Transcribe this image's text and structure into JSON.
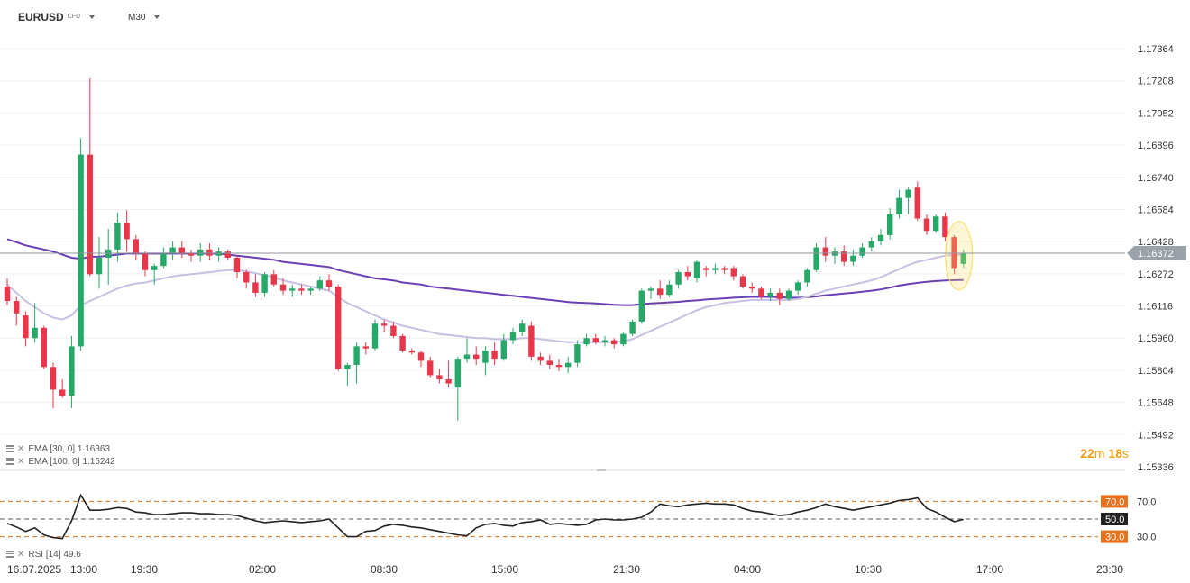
{
  "header": {
    "symbol": "EURUSD",
    "instrument_type": "CFD",
    "timeframe": "M30",
    "symbol_dropdown_icon": "chevron-down-icon",
    "timeframe_dropdown_icon": "chevron-down-icon"
  },
  "indicators": {
    "ema30": {
      "label": "EMA [30, 0]",
      "value": "1.16363",
      "color": "#c9bfe2"
    },
    "ema100": {
      "label": "EMA [100, 0]",
      "value": "1.16242",
      "color": "#6b3fb5"
    },
    "rsi": {
      "label": "RSI [14]",
      "value": "49.6",
      "color": "#222222"
    }
  },
  "countdown": {
    "minutes": "22",
    "minutes_unit": "m",
    "seconds": "18",
    "seconds_unit": "s"
  },
  "colors": {
    "bull": "#26a869",
    "bear": "#e8364a",
    "current_price_tag": "#9aa1a8",
    "rsi_level_tag": "#e8701a",
    "rsi_mid_tag": "#222222",
    "highlight": "#f5e06b"
  },
  "chart_data": [
    {
      "type": "candlestick",
      "title": "EURUSD M30",
      "y_axis_labels": [
        "1.17364",
        "1.17208",
        "1.17052",
        "1.16896",
        "1.16740",
        "1.16584",
        "1.16428",
        "1.16272",
        "1.16116",
        "1.15960",
        "1.15804",
        "1.15648",
        "1.15492",
        "1.15336"
      ],
      "ylim": [
        1.15336,
        1.1752
      ],
      "current_price": "1.16372",
      "x_axis_labels": [
        "16.07.2025",
        "13:00",
        "19:30",
        "02:00",
        "08:30",
        "15:00",
        "21:30",
        "04:00",
        "10:30",
        "17:00",
        "23:30"
      ],
      "candles": [
        {
          "o": 1.1621,
          "h": 1.1625,
          "l": 1.1612,
          "c": 1.1614
        },
        {
          "o": 1.1614,
          "h": 1.1616,
          "l": 1.1602,
          "c": 1.1608
        },
        {
          "o": 1.1607,
          "h": 1.1609,
          "l": 1.1592,
          "c": 1.1596
        },
        {
          "o": 1.1596,
          "h": 1.1613,
          "l": 1.1594,
          "c": 1.1601
        },
        {
          "o": 1.1601,
          "h": 1.1602,
          "l": 1.1581,
          "c": 1.1582
        },
        {
          "o": 1.1582,
          "h": 1.1584,
          "l": 1.1562,
          "c": 1.1571
        },
        {
          "o": 1.1571,
          "h": 1.1576,
          "l": 1.1567,
          "c": 1.1568
        },
        {
          "o": 1.1568,
          "h": 1.1597,
          "l": 1.1562,
          "c": 1.1592
        },
        {
          "o": 1.1592,
          "h": 1.1693,
          "l": 1.159,
          "c": 1.1685
        },
        {
          "o": 1.1685,
          "h": 1.1722,
          "l": 1.1626,
          "c": 1.1627
        },
        {
          "o": 1.1627,
          "h": 1.1645,
          "l": 1.162,
          "c": 1.1635
        },
        {
          "o": 1.1635,
          "h": 1.1649,
          "l": 1.1622,
          "c": 1.1639
        },
        {
          "o": 1.1639,
          "h": 1.1657,
          "l": 1.1633,
          "c": 1.1652
        },
        {
          "o": 1.1652,
          "h": 1.1658,
          "l": 1.1638,
          "c": 1.1644
        },
        {
          "o": 1.1644,
          "h": 1.1646,
          "l": 1.1634,
          "c": 1.1637
        },
        {
          "o": 1.1637,
          "h": 1.1638,
          "l": 1.1626,
          "c": 1.1629
        },
        {
          "o": 1.1629,
          "h": 1.1632,
          "l": 1.1622,
          "c": 1.1631
        },
        {
          "o": 1.1631,
          "h": 1.164,
          "l": 1.163,
          "c": 1.1637
        },
        {
          "o": 1.1637,
          "h": 1.1643,
          "l": 1.1634,
          "c": 1.164
        },
        {
          "o": 1.164,
          "h": 1.1643,
          "l": 1.1635,
          "c": 1.1637
        },
        {
          "o": 1.1637,
          "h": 1.1639,
          "l": 1.1633,
          "c": 1.1636
        },
        {
          "o": 1.1636,
          "h": 1.1642,
          "l": 1.1633,
          "c": 1.1639
        },
        {
          "o": 1.1639,
          "h": 1.1642,
          "l": 1.1634,
          "c": 1.1636
        },
        {
          "o": 1.1636,
          "h": 1.164,
          "l": 1.1633,
          "c": 1.1638
        },
        {
          "o": 1.1638,
          "h": 1.1639,
          "l": 1.1634,
          "c": 1.1635
        },
        {
          "o": 1.1635,
          "h": 1.1636,
          "l": 1.1625,
          "c": 1.1628
        },
        {
          "o": 1.1628,
          "h": 1.1629,
          "l": 1.162,
          "c": 1.1623
        },
        {
          "o": 1.1623,
          "h": 1.1627,
          "l": 1.1616,
          "c": 1.1618
        },
        {
          "o": 1.1618,
          "h": 1.1628,
          "l": 1.1616,
          "c": 1.1627
        },
        {
          "o": 1.1627,
          "h": 1.1629,
          "l": 1.1621,
          "c": 1.1622
        },
        {
          "o": 1.1622,
          "h": 1.1625,
          "l": 1.1617,
          "c": 1.1619
        },
        {
          "o": 1.1619,
          "h": 1.1622,
          "l": 1.1616,
          "c": 1.162
        },
        {
          "o": 1.162,
          "h": 1.1622,
          "l": 1.1617,
          "c": 1.1619
        },
        {
          "o": 1.1619,
          "h": 1.1621,
          "l": 1.1617,
          "c": 1.162
        },
        {
          "o": 1.162,
          "h": 1.1626,
          "l": 1.1619,
          "c": 1.1624
        },
        {
          "o": 1.1624,
          "h": 1.1627,
          "l": 1.1619,
          "c": 1.1621
        },
        {
          "o": 1.1621,
          "h": 1.1622,
          "l": 1.158,
          "c": 1.1581
        },
        {
          "o": 1.1581,
          "h": 1.1584,
          "l": 1.1573,
          "c": 1.1583
        },
        {
          "o": 1.1583,
          "h": 1.1594,
          "l": 1.1574,
          "c": 1.1592
        },
        {
          "o": 1.1592,
          "h": 1.1594,
          "l": 1.1588,
          "c": 1.1591
        },
        {
          "o": 1.1591,
          "h": 1.1605,
          "l": 1.159,
          "c": 1.1603
        },
        {
          "o": 1.1603,
          "h": 1.1605,
          "l": 1.1599,
          "c": 1.1602
        },
        {
          "o": 1.1602,
          "h": 1.1604,
          "l": 1.1596,
          "c": 1.1597
        },
        {
          "o": 1.1597,
          "h": 1.1598,
          "l": 1.1589,
          "c": 1.159
        },
        {
          "o": 1.159,
          "h": 1.1591,
          "l": 1.1588,
          "c": 1.1589
        },
        {
          "o": 1.1589,
          "h": 1.159,
          "l": 1.1582,
          "c": 1.1585
        },
        {
          "o": 1.1585,
          "h": 1.1587,
          "l": 1.1577,
          "c": 1.1578
        },
        {
          "o": 1.1578,
          "h": 1.1581,
          "l": 1.1574,
          "c": 1.1576
        },
        {
          "o": 1.1576,
          "h": 1.1585,
          "l": 1.1572,
          "c": 1.1574
        },
        {
          "o": 1.1572,
          "h": 1.1587,
          "l": 1.1556,
          "c": 1.1586
        },
        {
          "o": 1.1586,
          "h": 1.1596,
          "l": 1.1584,
          "c": 1.1588
        },
        {
          "o": 1.1588,
          "h": 1.1592,
          "l": 1.1583,
          "c": 1.1586
        },
        {
          "o": 1.1584,
          "h": 1.1592,
          "l": 1.1578,
          "c": 1.159
        },
        {
          "o": 1.159,
          "h": 1.1594,
          "l": 1.1583,
          "c": 1.1586
        },
        {
          "o": 1.1586,
          "h": 1.1598,
          "l": 1.1585,
          "c": 1.1595
        },
        {
          "o": 1.1595,
          "h": 1.1601,
          "l": 1.1593,
          "c": 1.1599
        },
        {
          "o": 1.1599,
          "h": 1.1605,
          "l": 1.1597,
          "c": 1.1603
        },
        {
          "o": 1.1602,
          "h": 1.1604,
          "l": 1.1585,
          "c": 1.1587
        },
        {
          "o": 1.1587,
          "h": 1.1589,
          "l": 1.1583,
          "c": 1.1585
        },
        {
          "o": 1.1585,
          "h": 1.1588,
          "l": 1.1581,
          "c": 1.1583
        },
        {
          "o": 1.1583,
          "h": 1.1586,
          "l": 1.158,
          "c": 1.1582
        },
        {
          "o": 1.1582,
          "h": 1.1587,
          "l": 1.1579,
          "c": 1.1584
        },
        {
          "o": 1.1584,
          "h": 1.1595,
          "l": 1.1582,
          "c": 1.1593
        },
        {
          "o": 1.1593,
          "h": 1.1598,
          "l": 1.1592,
          "c": 1.1596
        },
        {
          "o": 1.1596,
          "h": 1.1598,
          "l": 1.1593,
          "c": 1.1594
        },
        {
          "o": 1.1594,
          "h": 1.1597,
          "l": 1.1592,
          "c": 1.1595
        },
        {
          "o": 1.1595,
          "h": 1.1596,
          "l": 1.1591,
          "c": 1.1593
        },
        {
          "o": 1.1593,
          "h": 1.1599,
          "l": 1.1592,
          "c": 1.1598
        },
        {
          "o": 1.1598,
          "h": 1.1605,
          "l": 1.1597,
          "c": 1.1604
        },
        {
          "o": 1.1604,
          "h": 1.162,
          "l": 1.1603,
          "c": 1.1619
        },
        {
          "o": 1.1619,
          "h": 1.1621,
          "l": 1.1615,
          "c": 1.162
        },
        {
          "o": 1.162,
          "h": 1.1624,
          "l": 1.1615,
          "c": 1.1617
        },
        {
          "o": 1.1617,
          "h": 1.1624,
          "l": 1.1616,
          "c": 1.1622
        },
        {
          "o": 1.1622,
          "h": 1.1629,
          "l": 1.162,
          "c": 1.1628
        },
        {
          "o": 1.1628,
          "h": 1.1631,
          "l": 1.1624,
          "c": 1.1626
        },
        {
          "o": 1.1625,
          "h": 1.1634,
          "l": 1.1623,
          "c": 1.1633
        },
        {
          "o": 1.163,
          "h": 1.1631,
          "l": 1.1626,
          "c": 1.1629
        },
        {
          "o": 1.1629,
          "h": 1.1632,
          "l": 1.1627,
          "c": 1.163
        },
        {
          "o": 1.163,
          "h": 1.1631,
          "l": 1.1627,
          "c": 1.1629
        },
        {
          "o": 1.163,
          "h": 1.1631,
          "l": 1.1624,
          "c": 1.1626
        },
        {
          "o": 1.1626,
          "h": 1.1627,
          "l": 1.162,
          "c": 1.1621
        },
        {
          "o": 1.1621,
          "h": 1.1623,
          "l": 1.1618,
          "c": 1.162
        },
        {
          "o": 1.162,
          "h": 1.1621,
          "l": 1.1615,
          "c": 1.1616
        },
        {
          "o": 1.1616,
          "h": 1.162,
          "l": 1.1614,
          "c": 1.1618
        },
        {
          "o": 1.1618,
          "h": 1.162,
          "l": 1.1612,
          "c": 1.1615
        },
        {
          "o": 1.1615,
          "h": 1.162,
          "l": 1.1614,
          "c": 1.1619
        },
        {
          "o": 1.1619,
          "h": 1.1624,
          "l": 1.1617,
          "c": 1.1623
        },
        {
          "o": 1.1623,
          "h": 1.163,
          "l": 1.1621,
          "c": 1.1629
        },
        {
          "o": 1.1629,
          "h": 1.1642,
          "l": 1.1628,
          "c": 1.164
        },
        {
          "o": 1.164,
          "h": 1.1645,
          "l": 1.1633,
          "c": 1.1636
        },
        {
          "o": 1.1636,
          "h": 1.164,
          "l": 1.1632,
          "c": 1.1638
        },
        {
          "o": 1.1638,
          "h": 1.1641,
          "l": 1.1631,
          "c": 1.1633
        },
        {
          "o": 1.1633,
          "h": 1.1639,
          "l": 1.1631,
          "c": 1.1636
        },
        {
          "o": 1.1636,
          "h": 1.1642,
          "l": 1.1635,
          "c": 1.164
        },
        {
          "o": 1.164,
          "h": 1.1645,
          "l": 1.1638,
          "c": 1.1643
        },
        {
          "o": 1.1643,
          "h": 1.1649,
          "l": 1.1641,
          "c": 1.1646
        },
        {
          "o": 1.1646,
          "h": 1.1659,
          "l": 1.1644,
          "c": 1.1656
        },
        {
          "o": 1.1656,
          "h": 1.1668,
          "l": 1.1654,
          "c": 1.1664
        },
        {
          "o": 1.1664,
          "h": 1.1669,
          "l": 1.1656,
          "c": 1.1668
        },
        {
          "o": 1.1669,
          "h": 1.1672,
          "l": 1.1653,
          "c": 1.1654
        },
        {
          "o": 1.1654,
          "h": 1.1656,
          "l": 1.1646,
          "c": 1.1648
        },
        {
          "o": 1.1648,
          "h": 1.1656,
          "l": 1.1647,
          "c": 1.1655
        },
        {
          "o": 1.1655,
          "h": 1.1657,
          "l": 1.1643,
          "c": 1.1645
        },
        {
          "o": 1.1645,
          "h": 1.1646,
          "l": 1.1627,
          "c": 1.163
        },
        {
          "o": 1.1632,
          "h": 1.1639,
          "l": 1.163,
          "c": 1.16372
        }
      ],
      "series": [
        {
          "name": "EMA [30, 0]",
          "color": "#c9bfe2",
          "values": [
            1.1622,
            1.1618,
            1.1614,
            1.1611,
            1.1608,
            1.1606,
            1.1605,
            1.1607,
            1.1612,
            1.1614,
            1.1616,
            1.1618,
            1.162,
            1.16215,
            1.16225,
            1.1623,
            1.1624,
            1.1625,
            1.1626,
            1.16265,
            1.1627,
            1.16275,
            1.1628,
            1.16285,
            1.1629,
            1.1629,
            1.16285,
            1.16275,
            1.16265,
            1.16255,
            1.1624,
            1.1623,
            1.1622,
            1.1621,
            1.162,
            1.1619,
            1.1616,
            1.1613,
            1.1611,
            1.1609,
            1.1607,
            1.1605,
            1.16035,
            1.1602,
            1.1601,
            1.16,
            1.1599,
            1.1598,
            1.15975,
            1.1597,
            1.15965,
            1.1596,
            1.1596,
            1.15955,
            1.15955,
            1.15955,
            1.1596,
            1.1596,
            1.15955,
            1.1595,
            1.15945,
            1.1594,
            1.1594,
            1.1594,
            1.1594,
            1.1594,
            1.1594,
            1.15945,
            1.15955,
            1.15975,
            1.15995,
            1.16015,
            1.16035,
            1.16055,
            1.16075,
            1.16095,
            1.1611,
            1.1612,
            1.1613,
            1.16135,
            1.1614,
            1.16145,
            1.16145,
            1.16145,
            1.16145,
            1.16145,
            1.1615,
            1.1616,
            1.16175,
            1.1619,
            1.162,
            1.1621,
            1.1622,
            1.1623,
            1.1624,
            1.16255,
            1.16275,
            1.16295,
            1.16315,
            1.1633,
            1.1634,
            1.1635,
            1.1636,
            1.16365,
            1.16363
          ]
        },
        {
          "name": "EMA [100, 0]",
          "color": "#6b3fb5",
          "values": [
            1.1644,
            1.16425,
            1.1641,
            1.164,
            1.1639,
            1.1638,
            1.16365,
            1.1635,
            1.16345,
            1.16355,
            1.16355,
            1.1636,
            1.16365,
            1.1637,
            1.1637,
            1.1637,
            1.1637,
            1.1637,
            1.1637,
            1.1637,
            1.1637,
            1.1637,
            1.1637,
            1.1637,
            1.16365,
            1.1636,
            1.16355,
            1.1635,
            1.16345,
            1.1634,
            1.1633,
            1.16325,
            1.1632,
            1.16315,
            1.1631,
            1.16305,
            1.1629,
            1.1628,
            1.1627,
            1.1626,
            1.1625,
            1.16245,
            1.1624,
            1.1623,
            1.16225,
            1.1622,
            1.1621,
            1.16205,
            1.162,
            1.16195,
            1.1619,
            1.16185,
            1.1618,
            1.16175,
            1.1617,
            1.16165,
            1.1616,
            1.16155,
            1.1615,
            1.16145,
            1.1614,
            1.16135,
            1.16132,
            1.1613,
            1.16128,
            1.16125,
            1.16122,
            1.1612,
            1.1612,
            1.16125,
            1.16128,
            1.1613,
            1.16133,
            1.16136,
            1.1614,
            1.16143,
            1.16147,
            1.1615,
            1.16153,
            1.16156,
            1.16158,
            1.1616,
            1.1616,
            1.1616,
            1.16158,
            1.16156,
            1.16156,
            1.16158,
            1.16162,
            1.16168,
            1.16172,
            1.16176,
            1.1618,
            1.16185,
            1.1619,
            1.16196,
            1.16205,
            1.16215,
            1.16222,
            1.16228,
            1.16233,
            1.16237,
            1.1624,
            1.16241,
            1.16242
          ]
        }
      ]
    },
    {
      "type": "line",
      "title": "RSI [14]",
      "ylim": [
        0,
        100
      ],
      "levels": [
        70.0,
        50.0,
        30.0
      ],
      "level_labels": [
        "70.0",
        "50.0",
        "30.0"
      ],
      "series": [
        {
          "name": "RSI [14]",
          "color": "#222222",
          "values": [
            45,
            41,
            36,
            40,
            32,
            29,
            28,
            48,
            77,
            60,
            60,
            61,
            63,
            62,
            58,
            57,
            55,
            55,
            56,
            57,
            57,
            56,
            56,
            55,
            55,
            54,
            51,
            48,
            46,
            47,
            48,
            47,
            46,
            47,
            48,
            50,
            40,
            30,
            30,
            36,
            37,
            42,
            44,
            43,
            41,
            40,
            38,
            36,
            34,
            32,
            31,
            40,
            44,
            45,
            43,
            42,
            46,
            47,
            49,
            44,
            45,
            44,
            43,
            44,
            49,
            50,
            49,
            49,
            50,
            52,
            58,
            67,
            65,
            64,
            66,
            67,
            68,
            67,
            67,
            66,
            62,
            59,
            58,
            56,
            54,
            55,
            58,
            60,
            63,
            67,
            64,
            62,
            60,
            62,
            64,
            66,
            68,
            71,
            72,
            74,
            62,
            58,
            52,
            47,
            49.6
          ]
        }
      ]
    }
  ]
}
